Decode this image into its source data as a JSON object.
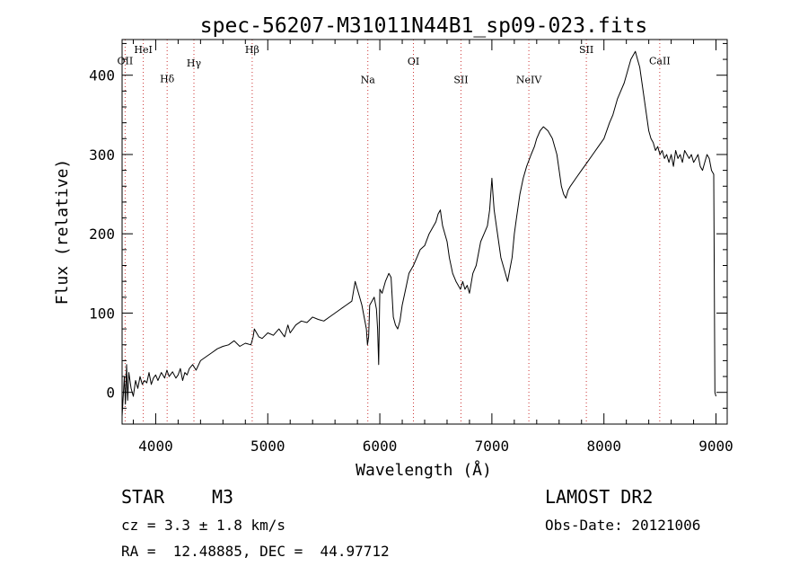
{
  "chart_data": {
    "type": "line",
    "title": "spec-56207-M31011N44B1_sp09-023.fits",
    "xlabel": "Wavelength (Å)",
    "ylabel": "Flux (relative)",
    "xlim": [
      3700,
      9100
    ],
    "ylim": [
      -40,
      445
    ],
    "xticks": [
      {
        "value": 4000,
        "label": "4000"
      },
      {
        "value": 5000,
        "label": "5000"
      },
      {
        "value": 6000,
        "label": "6000"
      },
      {
        "value": 7000,
        "label": "7000"
      },
      {
        "value": 8000,
        "label": "8000"
      },
      {
        "value": 9000,
        "label": "9000"
      }
    ],
    "yticks": [
      {
        "value": 0,
        "label": "0"
      },
      {
        "value": 100,
        "label": "100"
      },
      {
        "value": 200,
        "label": "200"
      },
      {
        "value": 300,
        "label": "300"
      },
      {
        "value": 400,
        "label": "400"
      }
    ],
    "grid": false,
    "line_color": "#000000",
    "marker_color": "#cc3333",
    "lines": [
      {
        "label": "OII",
        "wavelength": 3727,
        "label_y": 414
      },
      {
        "label": "HeI",
        "wavelength": 3889,
        "label_y": 428
      },
      {
        "label": "Hδ",
        "wavelength": 4102,
        "label_y": 391
      },
      {
        "label": "Hγ",
        "wavelength": 4341,
        "label_y": 411
      },
      {
        "label": "Hβ",
        "wavelength": 4861,
        "label_y": 428
      },
      {
        "label": "Na",
        "wavelength": 5893,
        "label_y": 390
      },
      {
        "label": "OI",
        "wavelength": 6300,
        "label_y": 413
      },
      {
        "label": "SII",
        "wavelength": 6724,
        "label_y": 390
      },
      {
        "label": "NeIV",
        "wavelength": 7330,
        "label_y": 390
      },
      {
        "label": "SII",
        "wavelength": 7843,
        "label_y": 428
      },
      {
        "label": "CaII",
        "wavelength": 8498,
        "label_y": 414
      }
    ],
    "series": [
      {
        "x": [
          3700,
          3720,
          3730,
          3740,
          3750,
          3760,
          3780,
          3800,
          3820,
          3840,
          3860,
          3880,
          3900,
          3920,
          3940,
          3960,
          3980,
          4000,
          4020,
          4050,
          4080,
          4100,
          4120,
          4150,
          4180,
          4200,
          4220,
          4240,
          4260,
          4280,
          4300,
          4330,
          4360,
          4400,
          4450,
          4500,
          4550,
          4600,
          4650,
          4700,
          4750,
          4800,
          4850,
          4870,
          4880,
          4900,
          4920,
          4950,
          5000,
          5050,
          5100,
          5150,
          5180,
          5200,
          5250,
          5300,
          5350,
          5400,
          5450,
          5500,
          5550,
          5600,
          5650,
          5700,
          5750,
          5780,
          5800,
          5820,
          5840,
          5860,
          5880,
          5890,
          5900,
          5910,
          5930,
          5950,
          5970,
          5980,
          5990,
          6000,
          6020,
          6050,
          6080,
          6100,
          6120,
          6140,
          6160,
          6180,
          6200,
          6230,
          6260,
          6300,
          6330,
          6360,
          6400,
          6440,
          6480,
          6500,
          6520,
          6540,
          6550,
          6560,
          6580,
          6600,
          6620,
          6650,
          6680,
          6700,
          6720,
          6740,
          6760,
          6780,
          6800,
          6830,
          6860,
          6900,
          6930,
          6960,
          6980,
          7000,
          7010,
          7020,
          7040,
          7060,
          7080,
          7100,
          7120,
          7140,
          7160,
          7180,
          7200,
          7220,
          7250,
          7280,
          7310,
          7350,
          7380,
          7400,
          7430,
          7460,
          7500,
          7540,
          7580,
          7600,
          7620,
          7640,
          7660,
          7680,
          7700,
          7750,
          7800,
          7850,
          7900,
          7950,
          8000,
          8050,
          8080,
          8100,
          8120,
          8150,
          8180,
          8200,
          8220,
          8240,
          8260,
          8280,
          8300,
          8320,
          8340,
          8360,
          8380,
          8400,
          8420,
          8440,
          8460,
          8480,
          8500,
          8520,
          8540,
          8560,
          8580,
          8600,
          8620,
          8640,
          8660,
          8680,
          8700,
          8720,
          8740,
          8760,
          8780,
          8800,
          8820,
          8840,
          8860,
          8880,
          8900,
          8920,
          8940,
          8960,
          8980,
          8990,
          9000
        ],
        "y": [
          -30,
          20,
          -15,
          35,
          -10,
          25,
          5,
          -5,
          15,
          5,
          20,
          10,
          15,
          12,
          25,
          10,
          18,
          22,
          15,
          25,
          18,
          28,
          20,
          26,
          18,
          22,
          30,
          15,
          25,
          22,
          30,
          35,
          28,
          40,
          45,
          50,
          55,
          58,
          60,
          65,
          58,
          62,
          60,
          70,
          80,
          75,
          70,
          68,
          75,
          72,
          80,
          70,
          85,
          75,
          85,
          90,
          88,
          95,
          92,
          90,
          95,
          100,
          105,
          110,
          115,
          140,
          130,
          120,
          110,
          95,
          80,
          60,
          70,
          110,
          115,
          120,
          105,
          80,
          35,
          130,
          125,
          140,
          150,
          145,
          95,
          85,
          80,
          90,
          110,
          130,
          150,
          160,
          170,
          180,
          185,
          200,
          210,
          215,
          225,
          230,
          220,
          210,
          200,
          190,
          170,
          150,
          140,
          135,
          130,
          140,
          130,
          135,
          125,
          150,
          160,
          190,
          200,
          210,
          230,
          270,
          250,
          230,
          210,
          190,
          170,
          160,
          150,
          140,
          155,
          170,
          200,
          220,
          250,
          270,
          285,
          300,
          310,
          320,
          330,
          335,
          330,
          320,
          300,
          280,
          260,
          250,
          245,
          255,
          260,
          270,
          280,
          290,
          300,
          310,
          320,
          340,
          350,
          360,
          370,
          380,
          390,
          400,
          410,
          420,
          425,
          430,
          420,
          410,
          390,
          370,
          350,
          330,
          320,
          315,
          305,
          310,
          300,
          305,
          295,
          300,
          290,
          300,
          285,
          305,
          295,
          300,
          290,
          305,
          300,
          295,
          300,
          290,
          295,
          300,
          285,
          280,
          290,
          300,
          295,
          280,
          275,
          0,
          -5
        ]
      }
    ],
    "info": {
      "object_class": "STAR",
      "subclass": "M3",
      "survey": "LAMOST DR2",
      "cz": "cz = 3.3 ± 1.8 km/s",
      "obs_date": "Obs-Date: 20121006",
      "coords": "RA =  12.48885, DEC =  44.97712"
    }
  }
}
